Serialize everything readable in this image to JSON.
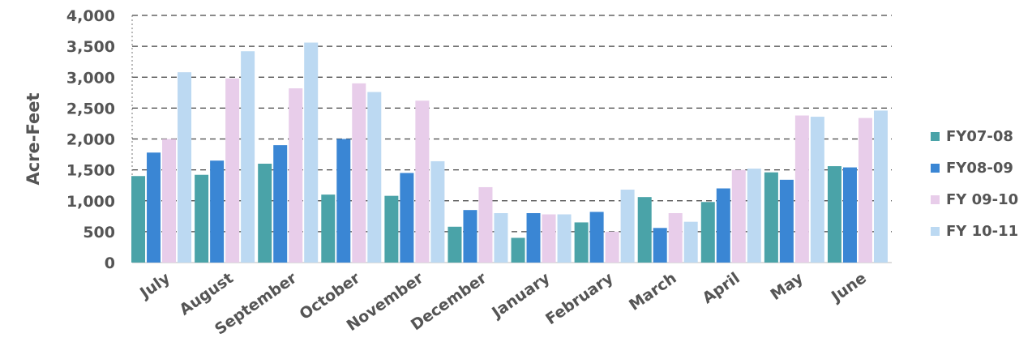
{
  "chart_data": {
    "type": "bar",
    "title": "",
    "xlabel": "",
    "ylabel": "Acre-Feet",
    "ylim": [
      0,
      4000
    ],
    "yticks": [
      0,
      500,
      1000,
      1500,
      2000,
      2500,
      3000,
      3500,
      4000
    ],
    "ytick_labels": [
      "0",
      "500",
      "1,000",
      "1,500",
      "2,000",
      "2,500",
      "3,000",
      "3,500",
      "4,000"
    ],
    "grid": true,
    "legend_position": "right",
    "categories": [
      "July",
      "August",
      "September",
      "October",
      "November",
      "December",
      "January",
      "February",
      "March",
      "April",
      "May",
      "June"
    ],
    "series": [
      {
        "name": "FY07-08",
        "color": "#4aa3a8",
        "values": [
          1400,
          1420,
          1600,
          1100,
          1080,
          580,
          400,
          650,
          1060,
          980,
          1460,
          1560
        ]
      },
      {
        "name": "FY08-09",
        "color": "#3a86d4",
        "values": [
          1780,
          1650,
          1900,
          2000,
          1450,
          850,
          800,
          820,
          560,
          1200,
          1340,
          1540
        ]
      },
      {
        "name": "FY 09-10",
        "color": "#e8cdea",
        "values": [
          2000,
          2980,
          2820,
          2900,
          2620,
          1220,
          780,
          500,
          800,
          1500,
          2380,
          2340
        ]
      },
      {
        "name": "FY 10-11",
        "color": "#bcd9f2",
        "values": [
          3080,
          3420,
          3560,
          2760,
          1640,
          800,
          780,
          1180,
          660,
          1520,
          2360,
          2460
        ]
      }
    ]
  }
}
